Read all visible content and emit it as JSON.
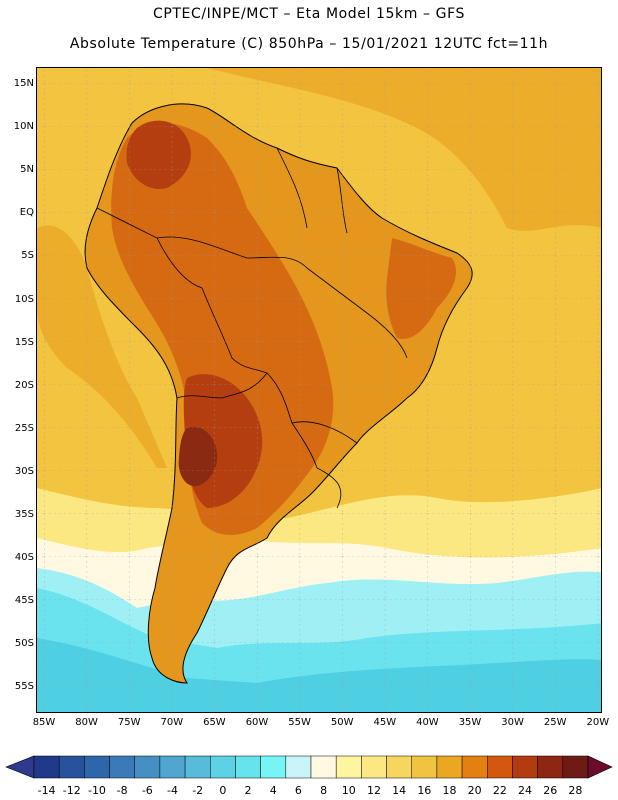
{
  "title_line1": "CPTEC/INPE/MCT –   Eta Model 15km – GFS",
  "title_line2": "Absolute Temperature (C) 850hPa – 15/01/2021 12UTC fct=11h",
  "lat_labels": [
    "15N",
    "10N",
    "5N",
    "EQ",
    "5S",
    "10S",
    "15S",
    "20S",
    "25S",
    "30S",
    "35S",
    "40S",
    "45S",
    "50S",
    "55S"
  ],
  "lon_labels": [
    "85W",
    "80W",
    "75W",
    "70W",
    "65W",
    "60W",
    "55W",
    "50W",
    "45W",
    "40W",
    "35W",
    "30W",
    "25W",
    "20W"
  ],
  "colorbar": {
    "labels": [
      "-14",
      "-12",
      "-10",
      "-8",
      "-6",
      "-4",
      "-2",
      "0",
      "2",
      "4",
      "6",
      "8",
      "10",
      "12",
      "14",
      "16",
      "18",
      "20",
      "22",
      "24",
      "26",
      "28"
    ],
    "colors": [
      "#1f3a8a",
      "#28539c",
      "#2f66ab",
      "#3a7ab8",
      "#4590c2",
      "#4fa6cf",
      "#56bcd9",
      "#5ed2e5",
      "#66e3ec",
      "#77f5f5",
      "#c9f4f8",
      "#fff9e2",
      "#fff5a0",
      "#fbe882",
      "#f7d65f",
      "#f1c342",
      "#eca722",
      "#e47f11",
      "#d25810",
      "#b23b10",
      "#8d2612",
      "#6e1a15"
    ],
    "under_color": "#2d3a8e",
    "over_color": "#6a0c2a"
  },
  "colors": {
    "ocean_tropical": "#f2c440",
    "ocean_warm": "#ecad2a",
    "land_warm": "#e4971c",
    "land_hot": "#d56a12",
    "land_hotter": "#b53e10",
    "core": "#8a2a12",
    "ocean_cool": "#fbe882",
    "ocean_mild": "#fff9e2",
    "ocean_cold": "#9ff0f5",
    "ocean_colder": "#6ae3ee",
    "ocean_coldest": "#4fcfe2",
    "coast": "#000000"
  }
}
